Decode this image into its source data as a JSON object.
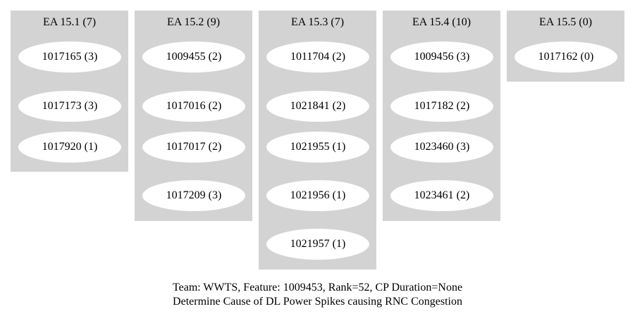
{
  "clusters": [
    {
      "label": "EA 15.1 (7)",
      "nodes": [
        "1017165 (3)",
        "1017173 (3)",
        "1017920 (1)"
      ]
    },
    {
      "label": "EA 15.2 (9)",
      "nodes": [
        "1009455 (2)",
        "1017016 (2)",
        "1017017 (2)",
        "1017209 (3)"
      ]
    },
    {
      "label": "EA 15.3 (7)",
      "nodes": [
        "1011704 (2)",
        "1021841 (2)",
        "1021955 (1)",
        "1021956 (1)",
        "1021957 (1)"
      ]
    },
    {
      "label": "EA 15.4 (10)",
      "nodes": [
        "1009456 (3)",
        "1017182 (2)",
        "1023460 (3)",
        "1023461 (2)"
      ]
    },
    {
      "label": "EA 15.5 (0)",
      "nodes": [
        "1017162 (0)"
      ]
    }
  ],
  "caption": {
    "line1": "Team: WWTS, Feature: 1009453, Rank=52, CP Duration=None",
    "line2": "Determine Cause of DL Power Spikes causing RNC Congestion"
  },
  "colors": {
    "cluster_fill": "#d3d3d3",
    "node_fill": "#ffffff",
    "background": "#ffffff"
  }
}
